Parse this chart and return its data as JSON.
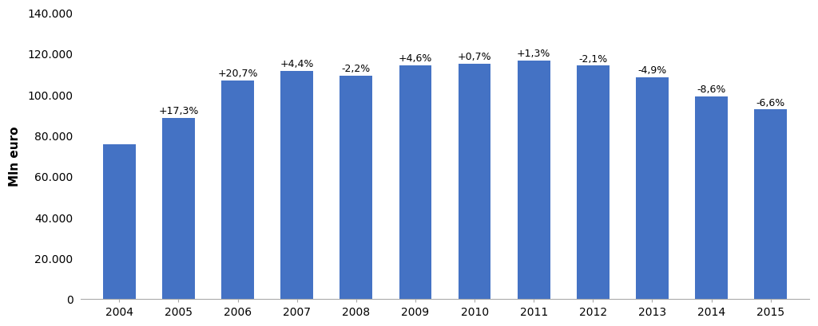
{
  "years": [
    2004,
    2005,
    2006,
    2007,
    2008,
    2009,
    2010,
    2011,
    2012,
    2013,
    2014,
    2015
  ],
  "values": [
    75500,
    88560,
    106890,
    111590,
    109134,
    114159,
    114959,
    116453,
    114009,
    108415,
    99098,
    92567
  ],
  "labels": [
    null,
    "+17,3%",
    "+20,7%",
    "+4,4%",
    "-2,2%",
    "+4,6%",
    "+0,7%",
    "+1,3%",
    "-2,1%",
    "-4,9%",
    "-8,6%",
    "-6,6%"
  ],
  "bar_color": "#4472C4",
  "ylabel": "Mln euro",
  "ylim": [
    0,
    140000
  ],
  "yticks": [
    0,
    20000,
    40000,
    60000,
    80000,
    100000,
    120000,
    140000
  ],
  "ytick_labels": [
    "0",
    "20.000",
    "40.000",
    "60.000",
    "80.000",
    "100.000",
    "120.000",
    "140.000"
  ],
  "label_fontsize": 9,
  "axis_fontsize": 10,
  "ylabel_fontsize": 11,
  "background_color": "#ffffff"
}
